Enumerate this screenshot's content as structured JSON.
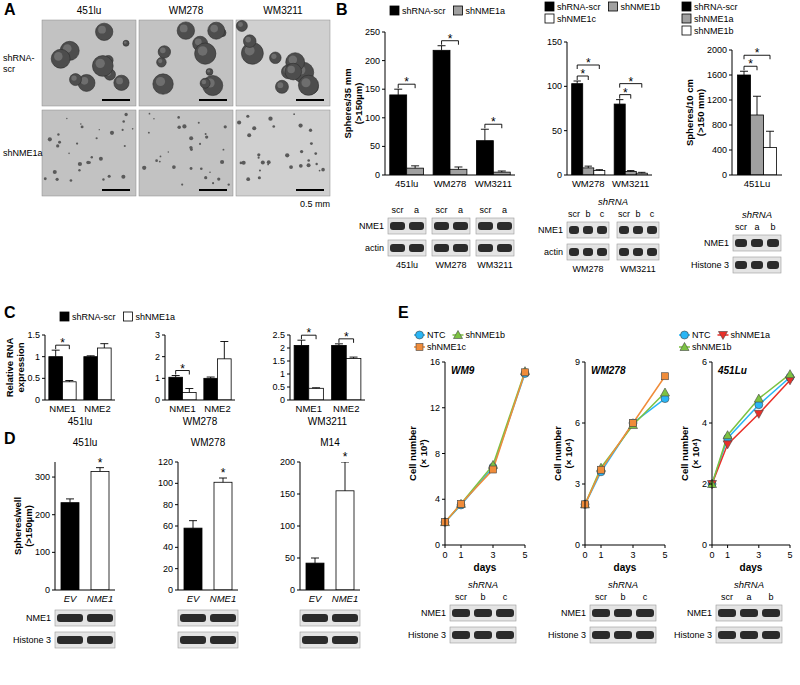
{
  "figure": {
    "panels": [
      "A",
      "B",
      "C",
      "D",
      "E"
    ],
    "micrographs": {
      "columns": [
        "451lu",
        "WM278",
        "WM3211"
      ],
      "rows": [
        [
          "shRNA-",
          "scr"
        ],
        [
          "shNME1a"
        ]
      ],
      "scale_bar": "0.5 mm"
    },
    "blots": [
      {
        "groups": [
          {
            "name": "451lu",
            "lanes": [
              "scr",
              "a"
            ]
          },
          {
            "name": "WM278",
            "lanes": [
              "scr",
              "a"
            ]
          },
          {
            "name": "WM3211",
            "lanes": [
              "scr",
              "a"
            ]
          }
        ],
        "rows": [
          "NME1",
          "actin"
        ]
      },
      {
        "header": "shRNA",
        "groups": [
          {
            "name": "WM278",
            "lanes": [
              "scr",
              "b",
              "c"
            ]
          },
          {
            "name": "WM3211",
            "lanes": [
              "scr",
              "b",
              "c"
            ]
          }
        ],
        "rows": [
          "NME1",
          "actin"
        ]
      },
      {
        "header": "shRNA",
        "groups": [
          {
            "lanes": [
              "scr",
              "a",
              "b"
            ]
          }
        ],
        "rows": [
          "NME1",
          "Histone 3"
        ]
      },
      {
        "rows": [
          "NME1",
          "Histone 3"
        ]
      },
      {
        "header": "shRNA",
        "groups": [
          {
            "lanes": [
              "scr",
              "b",
              "c"
            ]
          }
        ],
        "rows": [
          "NME1",
          "Histone 3"
        ]
      },
      {
        "header": "shRNA",
        "groups": [
          {
            "lanes": [
              "scr",
              "b",
              "c"
            ]
          }
        ],
        "rows": [
          "NME1",
          "Histone 3"
        ]
      },
      {
        "header": "shRNA",
        "groups": [
          {
            "lanes": [
              "scr",
              "a",
              "b"
            ]
          }
        ],
        "rows": [
          "NME1",
          "Histone 3"
        ]
      }
    ]
  },
  "chart_data": [
    {
      "type": "bar",
      "categories": [
        "451lu",
        "WM278",
        "WM3211"
      ],
      "series": [
        {
          "name": "shRNA-scr",
          "color": "#000000",
          "values": [
            140,
            218,
            60
          ],
          "errors": [
            10,
            8,
            20
          ]
        },
        {
          "name": "shNME1a",
          "color": "#a0a0a0",
          "values": [
            12,
            10,
            5
          ],
          "errors": [
            4,
            4,
            2
          ]
        }
      ],
      "ylabel": [
        "Spheres/35 mm",
        "(>150µm)"
      ],
      "ylim": [
        0,
        250
      ],
      "yticks": [
        0,
        50,
        100,
        150,
        200,
        250
      ],
      "legend": "top",
      "annotations": [
        {
          "text": "*",
          "category": 0,
          "series": [
            0,
            1
          ]
        },
        {
          "text": "*",
          "category": 1,
          "series": [
            0,
            1
          ]
        },
        {
          "text": "*",
          "category": 2,
          "series": [
            0,
            1
          ]
        }
      ]
    },
    {
      "type": "bar",
      "categories": [
        "WM278",
        "WM3211"
      ],
      "series": [
        {
          "name": "shRNA-scr",
          "color": "#000000",
          "values": [
            103,
            80
          ],
          "errors": [
            3,
            5
          ]
        },
        {
          "name": "shNME1b",
          "color": "#a0a0a0",
          "values": [
            8,
            4
          ],
          "errors": [
            2,
            1
          ]
        },
        {
          "name": "shNME1c",
          "color": "#ffffff",
          "values": [
            5,
            2
          ],
          "errors": [
            1,
            1
          ]
        }
      ],
      "ylim": [
        0,
        150
      ],
      "yticks": [
        0,
        50,
        100,
        150
      ],
      "legend": "top",
      "annotations": [
        {
          "text": "*",
          "category": 0,
          "series": [
            0,
            1
          ]
        },
        {
          "text": "*",
          "category": 0,
          "series": [
            0,
            2
          ]
        },
        {
          "text": "*",
          "category": 1,
          "series": [
            0,
            1
          ]
        },
        {
          "text": "*",
          "category": 1,
          "series": [
            0,
            2
          ]
        }
      ]
    },
    {
      "type": "bar",
      "categories": [
        "451Lu"
      ],
      "series": [
        {
          "name": "shRNA-scr",
          "color": "#000000",
          "values": [
            1600
          ],
          "errors": [
            60
          ]
        },
        {
          "name": "shNME1a",
          "color": "#a0a0a0",
          "values": [
            960
          ],
          "errors": [
            300
          ]
        },
        {
          "name": "shNME1b",
          "color": "#ffffff",
          "values": [
            440
          ],
          "errors": [
            260
          ]
        }
      ],
      "ylabel": [
        "Spheres/10 cm",
        "(>150 mm)"
      ],
      "ylim": [
        0,
        2000
      ],
      "yticks": [
        0,
        400,
        800,
        1200,
        1600,
        2000
      ],
      "legend": "top",
      "annotations": [
        {
          "text": "*",
          "category": 0,
          "series": [
            0,
            1
          ]
        },
        {
          "text": "*",
          "category": 0,
          "series": [
            0,
            2
          ]
        }
      ]
    },
    {
      "type": "bar",
      "categories": [
        "NME1",
        "NME2"
      ],
      "xlabel": "451lu",
      "series": [
        {
          "name": "shRNA-scr",
          "color": "#000000",
          "values": [
            1.0,
            1.0
          ],
          "errors": [
            0.15,
            0.02
          ]
        },
        {
          "name": "shNME1a",
          "color": "#ffffff",
          "values": [
            0.42,
            1.2
          ],
          "errors": [
            0.03,
            0.1
          ]
        }
      ],
      "ylabel": [
        "Relative RNA",
        "expression"
      ],
      "ylim": [
        0,
        1.5
      ],
      "yticks": [
        0,
        0.5,
        1,
        1.5
      ],
      "legend": "top",
      "annotations": [
        {
          "text": "*",
          "category": 0,
          "series": [
            0,
            1
          ]
        }
      ]
    },
    {
      "type": "bar",
      "categories": [
        "NME1",
        "NME2"
      ],
      "xlabel": "WM278",
      "series": [
        {
          "color": "#000000",
          "values": [
            1.05,
            1.0
          ],
          "errors": [
            0.08,
            0.06
          ]
        },
        {
          "color": "#ffffff",
          "values": [
            0.35,
            1.9
          ],
          "errors": [
            0.18,
            0.8
          ]
        }
      ],
      "ylim": [
        0,
        3
      ],
      "yticks": [
        0,
        1,
        2,
        3
      ],
      "annotations": [
        {
          "text": "*",
          "category": 0,
          "series": [
            0,
            1
          ]
        }
      ]
    },
    {
      "type": "bar",
      "categories": [
        "NME1",
        "NME2"
      ],
      "xlabel": "WM3211",
      "series": [
        {
          "color": "#000000",
          "values": [
            2.1,
            2.1
          ],
          "errors": [
            0.2,
            0.06
          ]
        },
        {
          "color": "#ffffff",
          "values": [
            0.45,
            1.6
          ],
          "errors": [
            0.02,
            0.05
          ]
        }
      ],
      "ylim": [
        0,
        2.5
      ],
      "yticks": [
        0,
        0.5,
        1,
        1.5,
        2,
        2.5
      ],
      "annotations": [
        {
          "text": "*",
          "category": 0,
          "series": [
            0,
            1
          ]
        },
        {
          "text": "*",
          "category": 1,
          "series": [
            0,
            1
          ]
        }
      ]
    },
    {
      "type": "bar",
      "title": "451lu",
      "categories": [
        "EV",
        "NME1"
      ],
      "values": [
        232,
        315
      ],
      "errors": [
        10,
        10
      ],
      "colors": [
        "#000000",
        "#ffffff"
      ],
      "ylabel": [
        "Spheres/well",
        "(>150µm)"
      ],
      "ylim": [
        0,
        340
      ],
      "yticks": [
        0,
        100,
        200,
        300
      ],
      "annotations": [
        {
          "text": "*",
          "category": 1
        }
      ]
    },
    {
      "type": "bar",
      "title": "WM278",
      "categories": [
        "EV",
        "NME1"
      ],
      "values": [
        58,
        101
      ],
      "errors": [
        7,
        4
      ],
      "colors": [
        "#000000",
        "#ffffff"
      ],
      "ylim": [
        0,
        120
      ],
      "yticks": [
        0,
        20,
        40,
        60,
        80,
        100,
        120
      ],
      "annotations": [
        {
          "text": "*",
          "category": 1
        }
      ]
    },
    {
      "type": "bar",
      "title": "M14",
      "categories": [
        "EV",
        "NME1"
      ],
      "values": [
        42,
        155
      ],
      "errors": [
        8,
        45
      ],
      "colors": [
        "#000000",
        "#ffffff"
      ],
      "ylim": [
        0,
        200
      ],
      "yticks": [
        0,
        50,
        100,
        150,
        200
      ],
      "annotations": [
        {
          "text": "*",
          "category": 1
        }
      ]
    },
    {
      "type": "line",
      "title": "WM9",
      "x": [
        0,
        1,
        3,
        5
      ],
      "xlim": [
        0,
        5
      ],
      "xticks": [
        0,
        1,
        3,
        5
      ],
      "xlabel": "days",
      "ylabel": [
        "Cell number",
        "(× 10³)"
      ],
      "ylim": [
        0,
        16
      ],
      "yticks": [
        0,
        4,
        8,
        12,
        16
      ],
      "legend": "top",
      "series": [
        {
          "name": "NTC",
          "color": "#29b6f6",
          "marker": "circle",
          "values": [
            2,
            3.5,
            6.8,
            15
          ]
        },
        {
          "name": "shNME1b",
          "color": "#7cc242",
          "marker": "triangle",
          "values": [
            2,
            3.6,
            7,
            15.2
          ]
        },
        {
          "name": "shNME1c",
          "color": "#f08c3a",
          "marker": "square",
          "values": [
            2,
            3.6,
            6.6,
            15.1
          ]
        }
      ]
    },
    {
      "type": "line",
      "title": "WM278",
      "x": [
        0,
        1,
        3,
        5
      ],
      "xlim": [
        0,
        5
      ],
      "xticks": [
        0,
        1,
        3,
        5
      ],
      "xlabel": "days",
      "ylabel": [
        "Cell number",
        "(× 10⁴)"
      ],
      "ylim": [
        0,
        9
      ],
      "yticks": [
        0,
        3,
        6,
        9
      ],
      "series": [
        {
          "color": "#29b6f6",
          "marker": "circle",
          "values": [
            2,
            3.6,
            6,
            7.2
          ]
        },
        {
          "color": "#7cc242",
          "marker": "triangle",
          "values": [
            2,
            3.8,
            5.9,
            7.5
          ]
        },
        {
          "color": "#f08c3a",
          "marker": "square",
          "values": [
            2,
            3.7,
            6,
            8.3
          ]
        }
      ]
    },
    {
      "type": "line",
      "title": "451Lu",
      "x": [
        0,
        1,
        3,
        5
      ],
      "xlim": [
        0,
        5
      ],
      "xticks": [
        0,
        1,
        3,
        5
      ],
      "xlabel": "days",
      "ylabel": [
        "Cell number",
        "(× 10⁴)"
      ],
      "ylim": [
        0,
        6
      ],
      "yticks": [
        0,
        2,
        4,
        6
      ],
      "legend": "top",
      "series": [
        {
          "name": "NTC",
          "color": "#29b6f6",
          "marker": "circle",
          "values": [
            2,
            3.5,
            4.6,
            5.5
          ]
        },
        {
          "name": "shNME1a",
          "color": "#e8302a",
          "marker": "triangle-down",
          "values": [
            2,
            3.3,
            4.3,
            5.4
          ]
        },
        {
          "name": "shNME1b",
          "color": "#7cc242",
          "marker": "triangle",
          "values": [
            2,
            3.6,
            4.8,
            5.6
          ]
        }
      ]
    }
  ]
}
